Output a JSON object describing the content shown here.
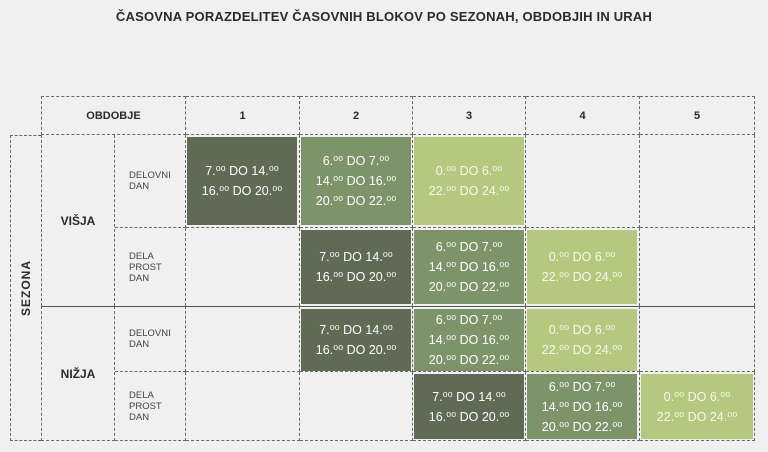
{
  "title": "ČASOVNA PORAZDELITEV ČASOVNIH BLOKOV PO SEZONAH, OBDOBJIH IN URAH",
  "header": {
    "label": "OBDOBJE",
    "periods": [
      "1",
      "2",
      "3",
      "4",
      "5"
    ]
  },
  "axis_label": "SEZONA",
  "seasons": [
    {
      "name": "VIŠJA"
    },
    {
      "name": "NIŽJA"
    }
  ],
  "day_types": {
    "working": "DELOVNI\nDAN",
    "non_working": "DELA\nPROST\nDAN"
  },
  "blocks": {
    "b1": "7.⁰⁰ DO 14.⁰⁰\n16.⁰⁰ DO 20.⁰⁰",
    "b2": "6.⁰⁰ DO 7.⁰⁰\n14.⁰⁰ DO 16.⁰⁰\n20.⁰⁰ DO 22.⁰⁰",
    "b3": "0.⁰⁰ DO 6.⁰⁰\n22.⁰⁰ DO 24.⁰⁰"
  },
  "colors": {
    "block_1": "#5f6b55",
    "block_2": "#7d9469",
    "block_3": "#b4c97e"
  }
}
